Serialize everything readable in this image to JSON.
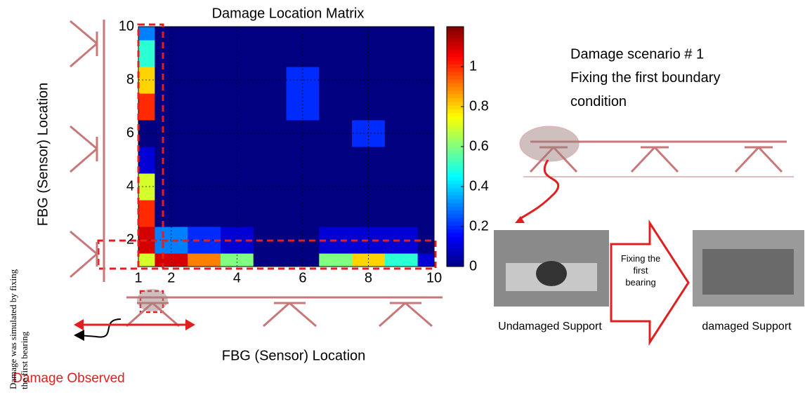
{
  "chart_data": {
    "type": "contour",
    "title": "Damage Location Matrix",
    "x_label": "FBG (Sensor) Location",
    "y_label": "FBG (Sensor) Location",
    "x": [
      1,
      2,
      3,
      4,
      5,
      6,
      7,
      8,
      9,
      10
    ],
    "y": [
      1,
      2,
      3,
      4,
      5,
      6,
      7,
      8,
      9,
      10
    ],
    "z": [
      [
        0.7,
        1.1,
        0.9,
        0.6,
        0,
        0,
        0.6,
        0.8,
        0.5,
        0.1
      ],
      [
        1.1,
        0.3,
        0.2,
        0.1,
        0,
        0,
        0.1,
        0.1,
        0.1,
        0
      ],
      [
        1.0,
        0,
        0,
        0,
        0,
        0,
        0,
        0,
        0,
        0
      ],
      [
        0.7,
        0,
        0,
        0,
        0,
        0,
        0,
        0,
        0,
        0
      ],
      [
        0.1,
        0,
        0,
        0,
        0,
        0,
        0,
        0,
        0,
        0
      ],
      [
        0,
        0,
        0,
        0,
        0,
        0,
        0,
        0.2,
        0,
        0
      ],
      [
        1.0,
        0,
        0,
        0,
        0,
        0.2,
        0,
        0,
        0,
        0
      ],
      [
        0.8,
        0,
        0,
        0,
        0,
        0.2,
        0,
        0,
        0,
        0
      ],
      [
        0.5,
        0,
        0,
        0,
        0,
        0,
        0,
        0,
        0,
        0
      ],
      [
        0.3,
        0,
        0,
        0,
        0,
        0,
        0,
        0,
        0,
        0
      ]
    ],
    "xlim": [
      1,
      10
    ],
    "ylim": [
      1,
      10
    ],
    "xticks": [
      1,
      2,
      4,
      6,
      8,
      10
    ],
    "yticks": [
      2,
      4,
      6,
      8,
      10
    ],
    "grid": true,
    "colormap": "jet",
    "zlim": [
      0,
      1.2
    ],
    "zticks": [
      0,
      0.2,
      0.4,
      0.6,
      0.8,
      1
    ]
  },
  "annotations": {
    "scenario": "Damage scenario # 1",
    "scenario_detail": "Fixing the first boundary condition",
    "arrow_label": "Fixing the first bearing",
    "undamaged": "Undamaged Support",
    "damaged": "damaged Support",
    "simulated": "Damage was simulated by fixing the first bearing",
    "observed": "Damage Observed"
  }
}
